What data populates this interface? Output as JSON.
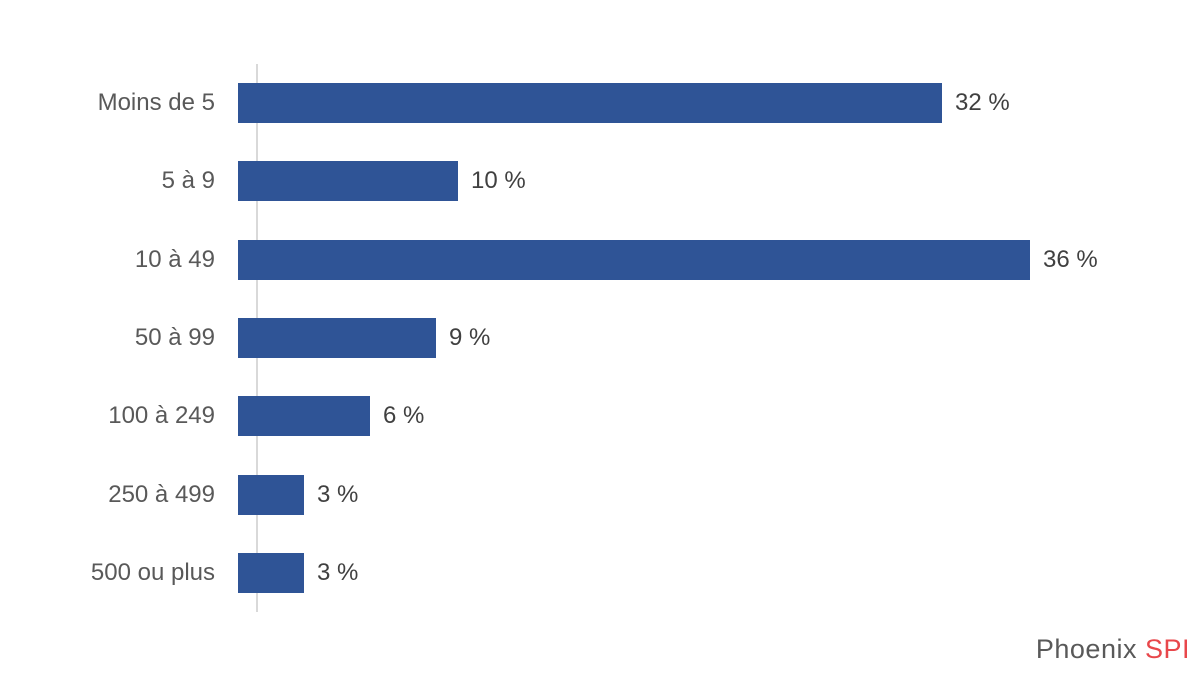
{
  "chart_data": {
    "type": "bar",
    "orientation": "horizontal",
    "title": "",
    "categories": [
      "Moins de 5",
      "5 à 9",
      "10 à 49",
      "50 à 99",
      "100 à 249",
      "250 à 499",
      "500 ou plus"
    ],
    "values": [
      32,
      10,
      36,
      9,
      6,
      3,
      3
    ],
    "value_labels": [
      "32 %",
      "10 %",
      "36 %",
      "9 %",
      "6 %",
      "3 %",
      "3 %"
    ],
    "xlim": [
      0,
      36
    ],
    "grid": "off",
    "legend": "none",
    "bar_color": "#2F5496",
    "axis_line_color": "#D9D9D9",
    "category_label_color": "#595959",
    "value_label_color": "#404040"
  },
  "branding": {
    "primary": "Phoenix ",
    "accent": "SPI",
    "primary_color": "#595959",
    "accent_color": "#E8474B"
  }
}
